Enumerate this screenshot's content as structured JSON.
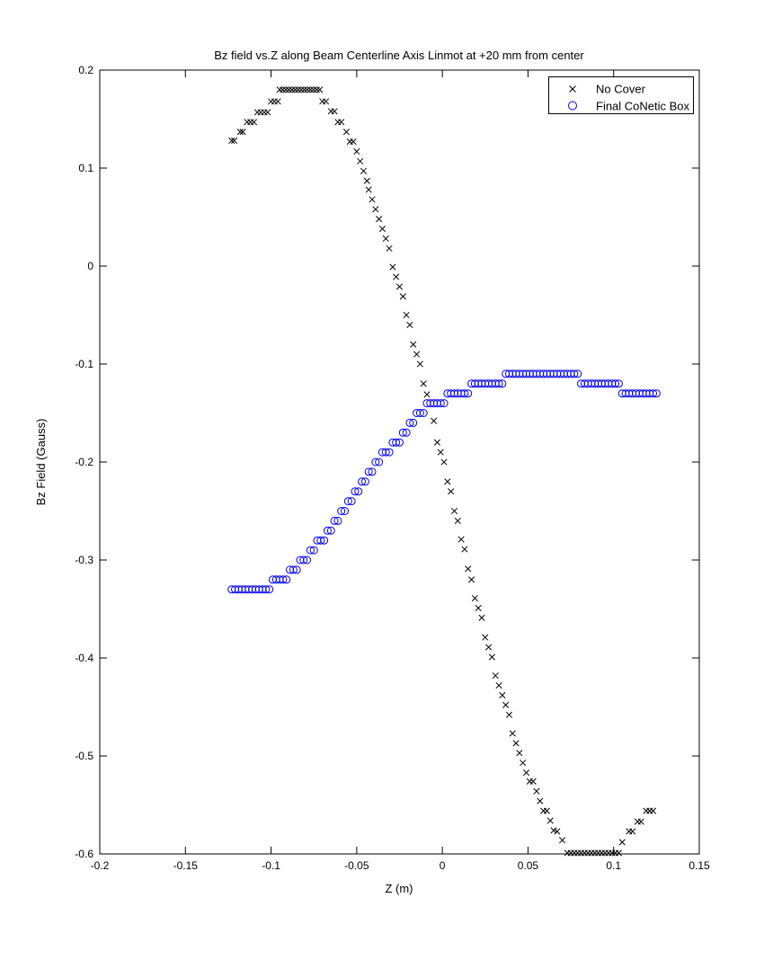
{
  "window": {
    "background": "#ffffff",
    "axis_color": "#000000"
  },
  "chart_data": {
    "type": "scatter",
    "title": "Bz field vs.Z along Beam Centerline Axis Linmot at +20 mm from center",
    "xlabel": "Z (m)",
    "ylabel": "Bz Field (Gauss)",
    "xlim": [
      -0.2,
      0.15
    ],
    "ylim": [
      -0.6,
      0.2
    ],
    "grid": false,
    "xtick_values": [
      -0.2,
      -0.15,
      -0.1,
      -0.05,
      0,
      0.05,
      0.1,
      0.15
    ],
    "xtick_labels": [
      "-0.2",
      "-0.15",
      "-0.1",
      "-0.05",
      "0",
      "0.05",
      "0.1",
      "0.15"
    ],
    "ytick_values": [
      0.2,
      0.1,
      0,
      -0.1,
      -0.2,
      -0.3,
      -0.4,
      -0.5,
      -0.6
    ],
    "ytick_labels": [
      "0.2",
      "0.1",
      "0",
      "-0.1",
      "-0.2",
      "-0.3",
      "-0.4",
      "-0.5",
      "-0.6"
    ],
    "legend": {
      "position": "top-right",
      "entries": [
        {
          "label": "No Cover",
          "marker": "x",
          "color": "#000000"
        },
        {
          "label": "Final CoNetic Box",
          "marker": "o",
          "color": "#0000ff"
        }
      ]
    },
    "series": [
      {
        "name": "No Cover",
        "marker": "x",
        "color": "#000000",
        "points": [
          [
            -0.123,
            0.128
          ],
          [
            -0.1215,
            0.128
          ],
          [
            -0.118,
            0.137
          ],
          [
            -0.1165,
            0.137
          ],
          [
            -0.114,
            0.147
          ],
          [
            -0.112,
            0.147
          ],
          [
            -0.11,
            0.147
          ],
          [
            -0.108,
            0.157
          ],
          [
            -0.106,
            0.157
          ],
          [
            -0.104,
            0.157
          ],
          [
            -0.102,
            0.157
          ],
          [
            -0.1,
            0.168
          ],
          [
            -0.098,
            0.168
          ],
          [
            -0.096,
            0.168
          ],
          [
            -0.095,
            0.18
          ],
          [
            -0.0932,
            0.18
          ],
          [
            -0.0914,
            0.18
          ],
          [
            -0.0896,
            0.18
          ],
          [
            -0.0878,
            0.18
          ],
          [
            -0.086,
            0.18
          ],
          [
            -0.0842,
            0.18
          ],
          [
            -0.0824,
            0.18
          ],
          [
            -0.0806,
            0.18
          ],
          [
            -0.0788,
            0.18
          ],
          [
            -0.077,
            0.18
          ],
          [
            -0.0752,
            0.18
          ],
          [
            -0.0734,
            0.18
          ],
          [
            -0.0716,
            0.18
          ],
          [
            -0.07,
            0.168
          ],
          [
            -0.068,
            0.168
          ],
          [
            -0.065,
            0.158
          ],
          [
            -0.063,
            0.158
          ],
          [
            -0.061,
            0.147
          ],
          [
            -0.059,
            0.147
          ],
          [
            -0.056,
            0.137
          ],
          [
            -0.054,
            0.127
          ],
          [
            -0.052,
            0.127
          ],
          [
            -0.05,
            0.117
          ],
          [
            -0.048,
            0.107
          ],
          [
            -0.046,
            0.097
          ],
          [
            -0.044,
            0.087
          ],
          [
            -0.043,
            0.078
          ],
          [
            -0.041,
            0.068
          ],
          [
            -0.039,
            0.058
          ],
          [
            -0.037,
            0.048
          ],
          [
            -0.035,
            0.038
          ],
          [
            -0.033,
            0.028
          ],
          [
            -0.031,
            0.018
          ],
          [
            -0.029,
            -0.001
          ],
          [
            -0.027,
            -0.011
          ],
          [
            -0.025,
            -0.021
          ],
          [
            -0.023,
            -0.031
          ],
          [
            -0.021,
            -0.05
          ],
          [
            -0.019,
            -0.06
          ],
          [
            -0.017,
            -0.08
          ],
          [
            -0.015,
            -0.09
          ],
          [
            -0.013,
            -0.1
          ],
          [
            -0.011,
            -0.12
          ],
          [
            -0.009,
            -0.131
          ],
          [
            -0.005,
            -0.158
          ],
          [
            -0.003,
            -0.18
          ],
          [
            -0.001,
            -0.19
          ],
          [
            0.001,
            -0.2
          ],
          [
            0.003,
            -0.22
          ],
          [
            0.005,
            -0.23
          ],
          [
            0.007,
            -0.25
          ],
          [
            0.009,
            -0.26
          ],
          [
            0.011,
            -0.279
          ],
          [
            0.013,
            -0.289
          ],
          [
            0.015,
            -0.309
          ],
          [
            0.017,
            -0.32
          ],
          [
            0.019,
            -0.339
          ],
          [
            0.021,
            -0.349
          ],
          [
            0.023,
            -0.359
          ],
          [
            0.025,
            -0.379
          ],
          [
            0.027,
            -0.389
          ],
          [
            0.029,
            -0.399
          ],
          [
            0.031,
            -0.418
          ],
          [
            0.033,
            -0.428
          ],
          [
            0.035,
            -0.438
          ],
          [
            0.037,
            -0.448
          ],
          [
            0.039,
            -0.458
          ],
          [
            0.041,
            -0.477
          ],
          [
            0.043,
            -0.487
          ],
          [
            0.045,
            -0.497
          ],
          [
            0.047,
            -0.507
          ],
          [
            0.049,
            -0.517
          ],
          [
            0.051,
            -0.526
          ],
          [
            0.053,
            -0.526
          ],
          [
            0.055,
            -0.536
          ],
          [
            0.057,
            -0.546
          ],
          [
            0.059,
            -0.556
          ],
          [
            0.061,
            -0.556
          ],
          [
            0.063,
            -0.566
          ],
          [
            0.065,
            -0.576
          ],
          [
            0.067,
            -0.577
          ],
          [
            0.07,
            -0.586
          ],
          [
            0.073,
            -0.599
          ],
          [
            0.075,
            -0.599
          ],
          [
            0.077,
            -0.599
          ],
          [
            0.079,
            -0.599
          ],
          [
            0.081,
            -0.599
          ],
          [
            0.083,
            -0.599
          ],
          [
            0.085,
            -0.599
          ],
          [
            0.087,
            -0.599
          ],
          [
            0.089,
            -0.599
          ],
          [
            0.091,
            -0.599
          ],
          [
            0.093,
            -0.599
          ],
          [
            0.095,
            -0.599
          ],
          [
            0.097,
            -0.599
          ],
          [
            0.099,
            -0.599
          ],
          [
            0.101,
            -0.599
          ],
          [
            0.103,
            -0.599
          ],
          [
            0.105,
            -0.588
          ],
          [
            0.109,
            -0.577
          ],
          [
            0.111,
            -0.577
          ],
          [
            0.114,
            -0.567
          ],
          [
            0.116,
            -0.567
          ],
          [
            0.119,
            -0.556
          ],
          [
            0.121,
            -0.556
          ],
          [
            0.123,
            -0.556
          ]
        ]
      },
      {
        "name": "Final CoNetic Box",
        "marker": "o",
        "color": "#0000ff",
        "points": [
          [
            -0.123,
            -0.33
          ],
          [
            -0.121,
            -0.33
          ],
          [
            -0.119,
            -0.33
          ],
          [
            -0.117,
            -0.33
          ],
          [
            -0.115,
            -0.33
          ],
          [
            -0.113,
            -0.33
          ],
          [
            -0.111,
            -0.33
          ],
          [
            -0.109,
            -0.33
          ],
          [
            -0.107,
            -0.33
          ],
          [
            -0.105,
            -0.33
          ],
          [
            -0.103,
            -0.33
          ],
          [
            -0.101,
            -0.33
          ],
          [
            -0.099,
            -0.32
          ],
          [
            -0.097,
            -0.32
          ],
          [
            -0.095,
            -0.32
          ],
          [
            -0.093,
            -0.32
          ],
          [
            -0.091,
            -0.32
          ],
          [
            -0.089,
            -0.31
          ],
          [
            -0.087,
            -0.31
          ],
          [
            -0.085,
            -0.31
          ],
          [
            -0.083,
            -0.3
          ],
          [
            -0.081,
            -0.3
          ],
          [
            -0.079,
            -0.3
          ],
          [
            -0.077,
            -0.29
          ],
          [
            -0.075,
            -0.29
          ],
          [
            -0.073,
            -0.28
          ],
          [
            -0.071,
            -0.28
          ],
          [
            -0.069,
            -0.28
          ],
          [
            -0.067,
            -0.27
          ],
          [
            -0.065,
            -0.27
          ],
          [
            -0.063,
            -0.26
          ],
          [
            -0.061,
            -0.26
          ],
          [
            -0.059,
            -0.25
          ],
          [
            -0.057,
            -0.25
          ],
          [
            -0.055,
            -0.24
          ],
          [
            -0.053,
            -0.24
          ],
          [
            -0.051,
            -0.23
          ],
          [
            -0.049,
            -0.23
          ],
          [
            -0.047,
            -0.22
          ],
          [
            -0.045,
            -0.22
          ],
          [
            -0.043,
            -0.21
          ],
          [
            -0.041,
            -0.21
          ],
          [
            -0.039,
            -0.2
          ],
          [
            -0.037,
            -0.2
          ],
          [
            -0.035,
            -0.19
          ],
          [
            -0.033,
            -0.19
          ],
          [
            -0.031,
            -0.19
          ],
          [
            -0.029,
            -0.18
          ],
          [
            -0.027,
            -0.18
          ],
          [
            -0.025,
            -0.18
          ],
          [
            -0.023,
            -0.17
          ],
          [
            -0.021,
            -0.17
          ],
          [
            -0.019,
            -0.16
          ],
          [
            -0.017,
            -0.16
          ],
          [
            -0.015,
            -0.15
          ],
          [
            -0.013,
            -0.15
          ],
          [
            -0.011,
            -0.15
          ],
          [
            -0.009,
            -0.14
          ],
          [
            -0.007,
            -0.14
          ],
          [
            -0.005,
            -0.14
          ],
          [
            -0.003,
            -0.14
          ],
          [
            -0.001,
            -0.14
          ],
          [
            0.001,
            -0.14
          ],
          [
            0.003,
            -0.13
          ],
          [
            0.005,
            -0.13
          ],
          [
            0.007,
            -0.13
          ],
          [
            0.009,
            -0.13
          ],
          [
            0.011,
            -0.13
          ],
          [
            0.013,
            -0.13
          ],
          [
            0.015,
            -0.13
          ],
          [
            0.017,
            -0.12
          ],
          [
            0.019,
            -0.12
          ],
          [
            0.021,
            -0.12
          ],
          [
            0.023,
            -0.12
          ],
          [
            0.025,
            -0.12
          ],
          [
            0.027,
            -0.12
          ],
          [
            0.029,
            -0.12
          ],
          [
            0.031,
            -0.12
          ],
          [
            0.033,
            -0.12
          ],
          [
            0.035,
            -0.12
          ],
          [
            0.037,
            -0.11
          ],
          [
            0.039,
            -0.11
          ],
          [
            0.041,
            -0.11
          ],
          [
            0.043,
            -0.11
          ],
          [
            0.045,
            -0.11
          ],
          [
            0.047,
            -0.11
          ],
          [
            0.049,
            -0.11
          ],
          [
            0.051,
            -0.11
          ],
          [
            0.053,
            -0.11
          ],
          [
            0.055,
            -0.11
          ],
          [
            0.057,
            -0.11
          ],
          [
            0.059,
            -0.11
          ],
          [
            0.061,
            -0.11
          ],
          [
            0.063,
            -0.11
          ],
          [
            0.065,
            -0.11
          ],
          [
            0.067,
            -0.11
          ],
          [
            0.069,
            -0.11
          ],
          [
            0.071,
            -0.11
          ],
          [
            0.073,
            -0.11
          ],
          [
            0.075,
            -0.11
          ],
          [
            0.077,
            -0.11
          ],
          [
            0.079,
            -0.11
          ],
          [
            0.081,
            -0.12
          ],
          [
            0.083,
            -0.12
          ],
          [
            0.085,
            -0.12
          ],
          [
            0.087,
            -0.12
          ],
          [
            0.089,
            -0.12
          ],
          [
            0.091,
            -0.12
          ],
          [
            0.093,
            -0.12
          ],
          [
            0.095,
            -0.12
          ],
          [
            0.097,
            -0.12
          ],
          [
            0.099,
            -0.12
          ],
          [
            0.101,
            -0.12
          ],
          [
            0.103,
            -0.12
          ],
          [
            0.105,
            -0.13
          ],
          [
            0.107,
            -0.13
          ],
          [
            0.109,
            -0.13
          ],
          [
            0.111,
            -0.13
          ],
          [
            0.113,
            -0.13
          ],
          [
            0.115,
            -0.13
          ],
          [
            0.117,
            -0.13
          ],
          [
            0.119,
            -0.13
          ],
          [
            0.121,
            -0.13
          ],
          [
            0.123,
            -0.13
          ],
          [
            0.125,
            -0.13
          ]
        ]
      }
    ]
  }
}
